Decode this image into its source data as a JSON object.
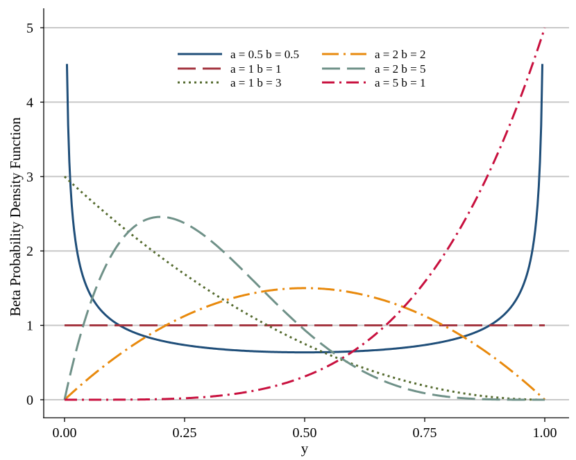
{
  "chart_data": {
    "type": "line",
    "xlabel": "y",
    "ylabel": "Beta Probability Density Function",
    "xlim": [
      0,
      1
    ],
    "ylim": [
      0,
      5.25
    ],
    "x_ticks": [
      0,
      0.25,
      0.5,
      0.75,
      1.0
    ],
    "x_tick_labels": [
      "0.00",
      "0.25",
      "0.50",
      "0.75",
      "1.00"
    ],
    "y_ticks": [
      0,
      1,
      2,
      3,
      4,
      5
    ],
    "y_tick_labels": [
      "0",
      "1",
      "2",
      "3",
      "4",
      "5"
    ],
    "grid": "horizontal",
    "legend_position": "top-center",
    "series": [
      {
        "name": "a = 0.5 b = 0.5",
        "a": 0.5,
        "b": 0.5,
        "color": "#1f4e79",
        "dash": "solid"
      },
      {
        "name": "a = 1 b = 1",
        "a": 1,
        "b": 1,
        "color": "#a3343f",
        "dash": "long-dash"
      },
      {
        "name": "a = 1 b = 3",
        "a": 1,
        "b": 3,
        "color": "#556b2f",
        "dash": "dot"
      },
      {
        "name": "a = 2 b = 2",
        "a": 2,
        "b": 2,
        "color": "#e8890c",
        "dash": "long-dash-dot"
      },
      {
        "name": "a = 2 b = 5",
        "a": 2,
        "b": 5,
        "color": "#6f9188",
        "dash": "long-dash"
      },
      {
        "name": "a = 5 b = 1",
        "a": 5,
        "b": 1,
        "color": "#c8103e",
        "dash": "dash-dot"
      }
    ]
  }
}
